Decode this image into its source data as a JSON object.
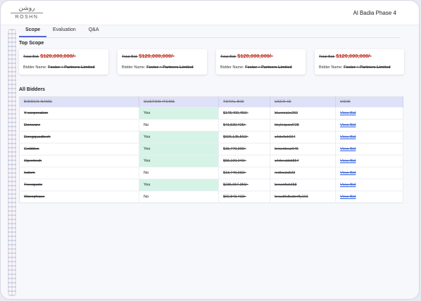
{
  "header": {
    "logo_ar": "روشن",
    "logo_en": "ROSHN",
    "project_name": "Al Badia Phase 4"
  },
  "tabs": [
    {
      "label": "Scope",
      "active": true
    },
    {
      "label": "Evaluation",
      "active": false
    },
    {
      "label": "Q&A",
      "active": false
    }
  ],
  "top_scope": {
    "title": "Top Scope",
    "cards": [
      {
        "total_bid_label": "Total Bid:",
        "total_bid_value": "$120,000,000/-",
        "bidder_label": "Bidder Name:",
        "bidder_value": "Foster + Partners Limited"
      },
      {
        "total_bid_label": "Total Bid:",
        "total_bid_value": "$120,000,000/-",
        "bidder_label": "Bidder Name:",
        "bidder_value": "Foster + Partners Limited"
      },
      {
        "total_bid_label": "Total Bid:",
        "total_bid_value": "$120,000,000/-",
        "bidder_label": "Bidder Name:",
        "bidder_value": "Foster + Partners Limited"
      },
      {
        "total_bid_label": "Total Bid:",
        "total_bid_value": "$120,000,000/-",
        "bidder_label": "Bidder Name:",
        "bidder_value": "Foster + Partners Limited"
      }
    ]
  },
  "all_bidders": {
    "title": "All Bidders",
    "columns": [
      "BIDDER NAME",
      "CUSTOM ITEMS",
      "TOTAL BID",
      "USER ID",
      "VIEW"
    ],
    "rows": [
      {
        "bidder": "Y-corporation",
        "custom": "Yes",
        "total": "$178,400,450/-",
        "user": "bluesnake260",
        "view": "View Bid"
      },
      {
        "bidder": "Donware",
        "custom": "No",
        "total": "$41,530,425/-",
        "user": "tinyleopard728",
        "view": "View Bid"
      },
      {
        "bidder": "Dongquadtech",
        "custom": "Yes",
        "total": "$926,125,560/-",
        "user": "whitefish664",
        "view": "View Bid"
      },
      {
        "bidder": "Golddex",
        "custom": "Yes",
        "total": "$15,770,000/-",
        "user": "brownbear646",
        "view": "View Bid"
      },
      {
        "bidder": "Opentech",
        "custom": "Yes",
        "total": "$83,100,040/-",
        "user": "whiterabbit554",
        "view": "View Bid"
      },
      {
        "bidder": "Isdom",
        "custom": "No",
        "total": "$13,740,032/-",
        "user": "redkoala523",
        "view": "View Bid"
      },
      {
        "bidder": "Treequote",
        "custom": "Yes",
        "total": "$235,657,950/-",
        "user": "brownfish258",
        "view": "View Bid"
      },
      {
        "bidder": "Warephase",
        "custom": "No",
        "total": "$92,843,433/-",
        "user": "beautifulbutterfly101",
        "view": "View Bid"
      }
    ]
  },
  "colors": {
    "accent": "#5865d6",
    "table_header_bg": "#dfe1f8",
    "yes_bg": "#d6f3e7",
    "link": "#2f5ed6",
    "bid_amount": "#c0392b"
  }
}
